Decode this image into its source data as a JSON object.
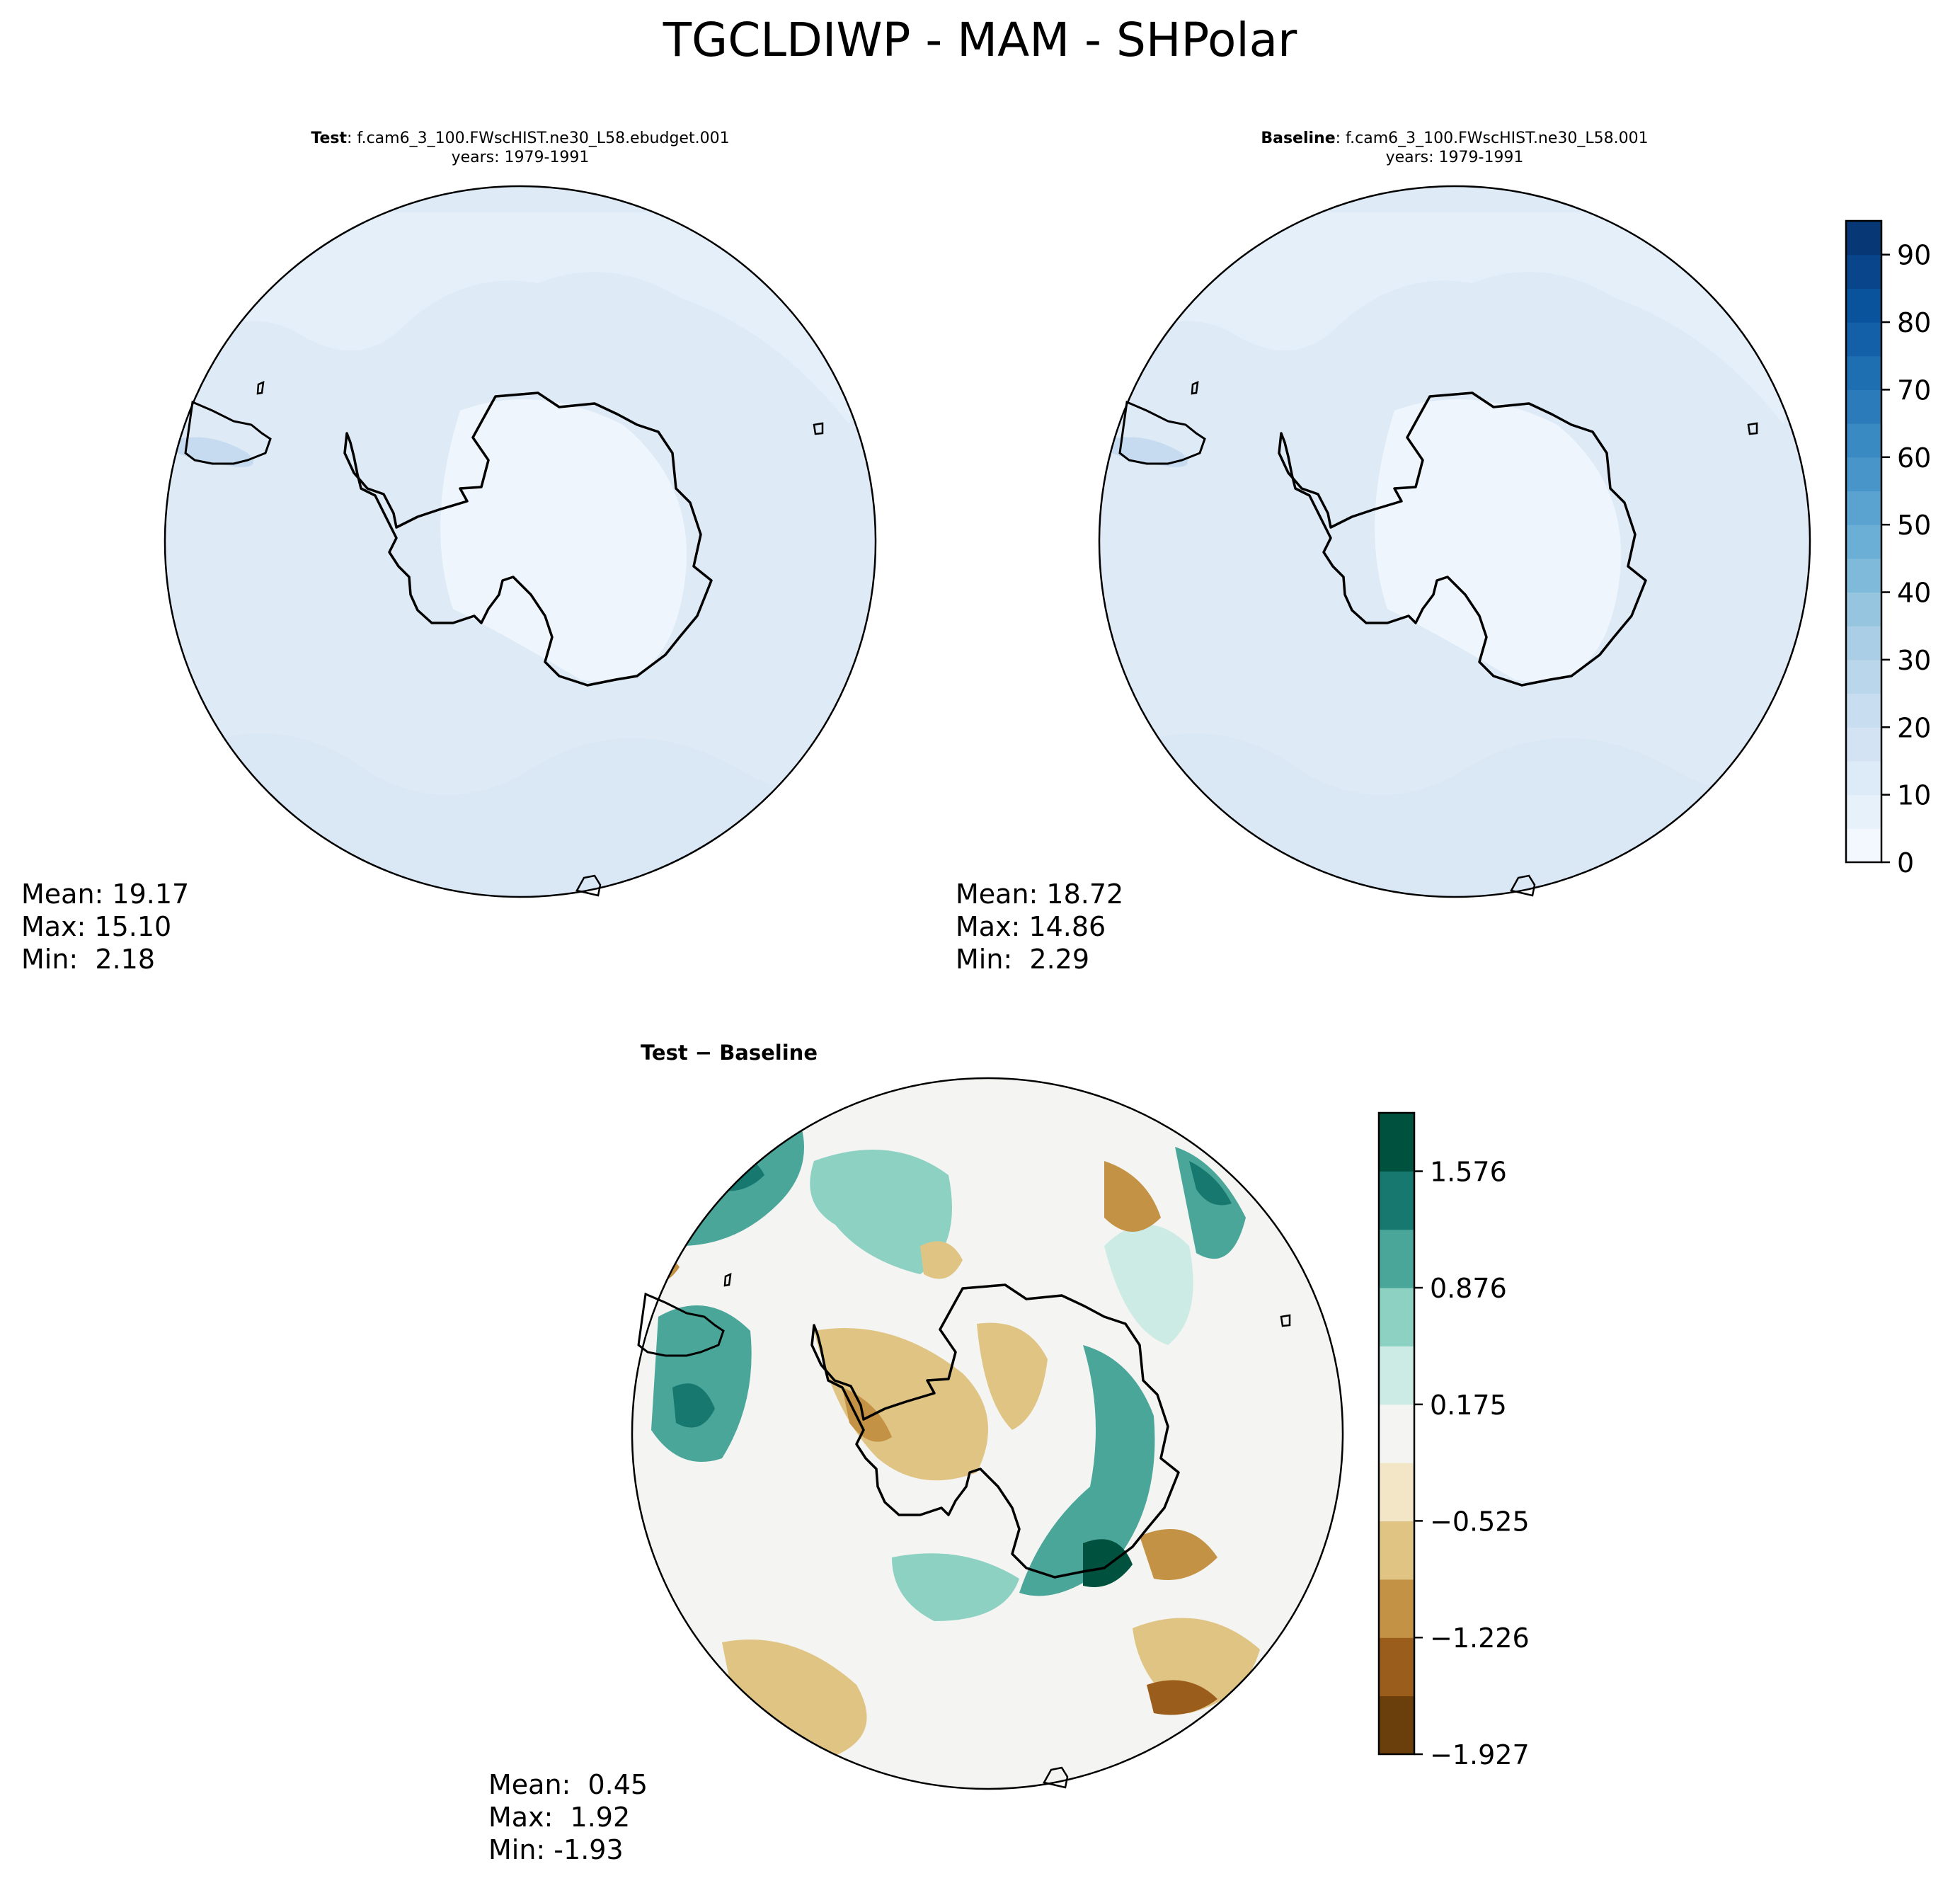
{
  "figure": {
    "title": "TGCLDIWP - MAM - SHPolar"
  },
  "panels": [
    {
      "id": "test",
      "title_bold": "Test",
      "title_rest": ": f.cam6_3_100.FWscHIST.ne30_L58.ebudget.001",
      "subtitle": "years: 1979-1991",
      "stats": {
        "mean_label": "Mean: 19.17",
        "max_label": "Max: 15.10",
        "min_label": "Min:  2.18"
      }
    },
    {
      "id": "baseline",
      "title_bold": "Baseline",
      "title_rest": ": f.cam6_3_100.FWscHIST.ne30_L58.001",
      "subtitle": "years: 1979-1991",
      "stats": {
        "mean_label": "Mean: 18.72",
        "max_label": "Max: 14.86",
        "min_label": "Min:  2.29"
      }
    },
    {
      "id": "diff",
      "title_bold": "Test − Baseline",
      "title_rest": "",
      "subtitle": "",
      "stats": {
        "mean_label": "Mean:  0.45",
        "max_label": "Max:  1.92",
        "min_label": "Min: -1.93"
      }
    }
  ],
  "chart_data": [
    {
      "type": "heatmap",
      "name": "Test",
      "projection": "south polar stereographic",
      "mean": 19.17,
      "max": 15.1,
      "min": 2.18,
      "colormap": "Blues",
      "colorbar": {
        "range": [
          0,
          95
        ],
        "ticks": [
          0,
          10,
          20,
          30,
          40,
          50,
          60,
          70,
          80,
          90
        ],
        "levels": [
          0,
          5,
          10,
          15,
          20,
          25,
          30,
          35,
          40,
          45,
          50,
          55,
          60,
          65,
          70,
          75,
          80,
          85,
          90,
          95
        ]
      }
    },
    {
      "type": "heatmap",
      "name": "Baseline",
      "projection": "south polar stereographic",
      "mean": 18.72,
      "max": 14.86,
      "min": 2.29,
      "colormap": "Blues",
      "colorbar": {
        "range": [
          0,
          95
        ],
        "ticks": [
          0,
          10,
          20,
          30,
          40,
          50,
          60,
          70,
          80,
          90
        ],
        "levels": [
          0,
          5,
          10,
          15,
          20,
          25,
          30,
          35,
          40,
          45,
          50,
          55,
          60,
          65,
          70,
          75,
          80,
          85,
          90,
          95
        ]
      }
    },
    {
      "type": "heatmap",
      "name": "Test − Baseline",
      "projection": "south polar stereographic",
      "mean": 0.45,
      "max": 1.92,
      "min": -1.93,
      "colormap": "BrBG",
      "colorbar": {
        "range": [
          -1.927,
          1.927
        ],
        "ticks": [
          -1.927,
          -1.226,
          -0.525,
          0.175,
          0.876,
          1.576
        ],
        "tick_labels": [
          "−1.927",
          "−1.226",
          "−0.525",
          "0.175",
          "0.876",
          "1.576"
        ],
        "colors": [
          "#6b3f0c",
          "#9b5d1c",
          "#c49244",
          "#e0c483",
          "#f3e6c6",
          "#f4f4f2",
          "#cdebe5",
          "#8dd1c3",
          "#4aa699",
          "#177870",
          "#01513f"
        ]
      }
    }
  ],
  "colors": {
    "ocean_fill": "#deebf7",
    "land_fill": "#eef5fc",
    "coast": "#000000"
  }
}
